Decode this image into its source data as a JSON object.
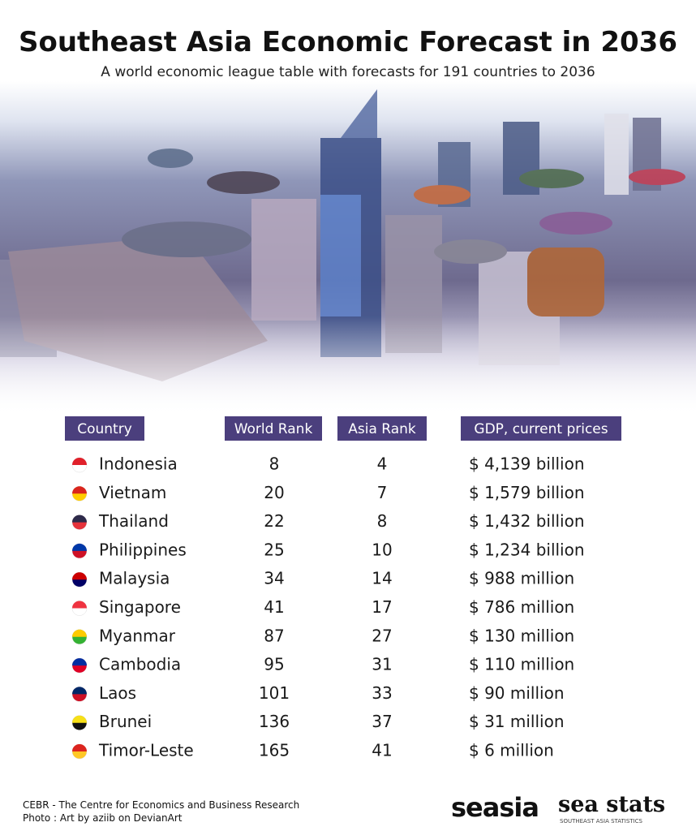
{
  "header": {
    "title": "Southeast Asia Economic Forecast in 2036",
    "subtitle": "A world economic league table with forecasts for 191 countries to 2036"
  },
  "table": {
    "columns": [
      "Country",
      "World Rank",
      "Asia Rank",
      "GDP, current prices"
    ],
    "rows": [
      [
        "Indonesia",
        8,
        4,
        "$ 4,139 billion"
      ],
      [
        "Vietnam",
        20,
        7,
        "$ 1,579 billion"
      ],
      [
        "Thailand",
        22,
        8,
        "$ 1,432 billion"
      ],
      [
        "Philippines",
        25,
        10,
        "$ 1,234 billion"
      ],
      [
        "Malaysia",
        34,
        14,
        "$ 988 million"
      ],
      [
        "Singapore",
        41,
        17,
        "$ 786 million"
      ],
      [
        "Myanmar",
        87,
        27,
        "$ 130 million"
      ],
      [
        "Cambodia",
        95,
        31,
        "$ 110 million"
      ],
      [
        "Laos",
        101,
        33,
        "$ 90 million"
      ],
      [
        "Brunei",
        136,
        37,
        "$ 31 million"
      ],
      [
        "Timor-Leste",
        165,
        41,
        "$ 6 million"
      ]
    ]
  },
  "footer": {
    "source": "CEBR - The Centre for Economics and Business Research",
    "photo": "Photo : Art by aziib on DevianArt",
    "logo1": "seasia",
    "logo2": "sea stats",
    "logo2_sub": "SOUTHEAST ASIA STATISTICS"
  }
}
